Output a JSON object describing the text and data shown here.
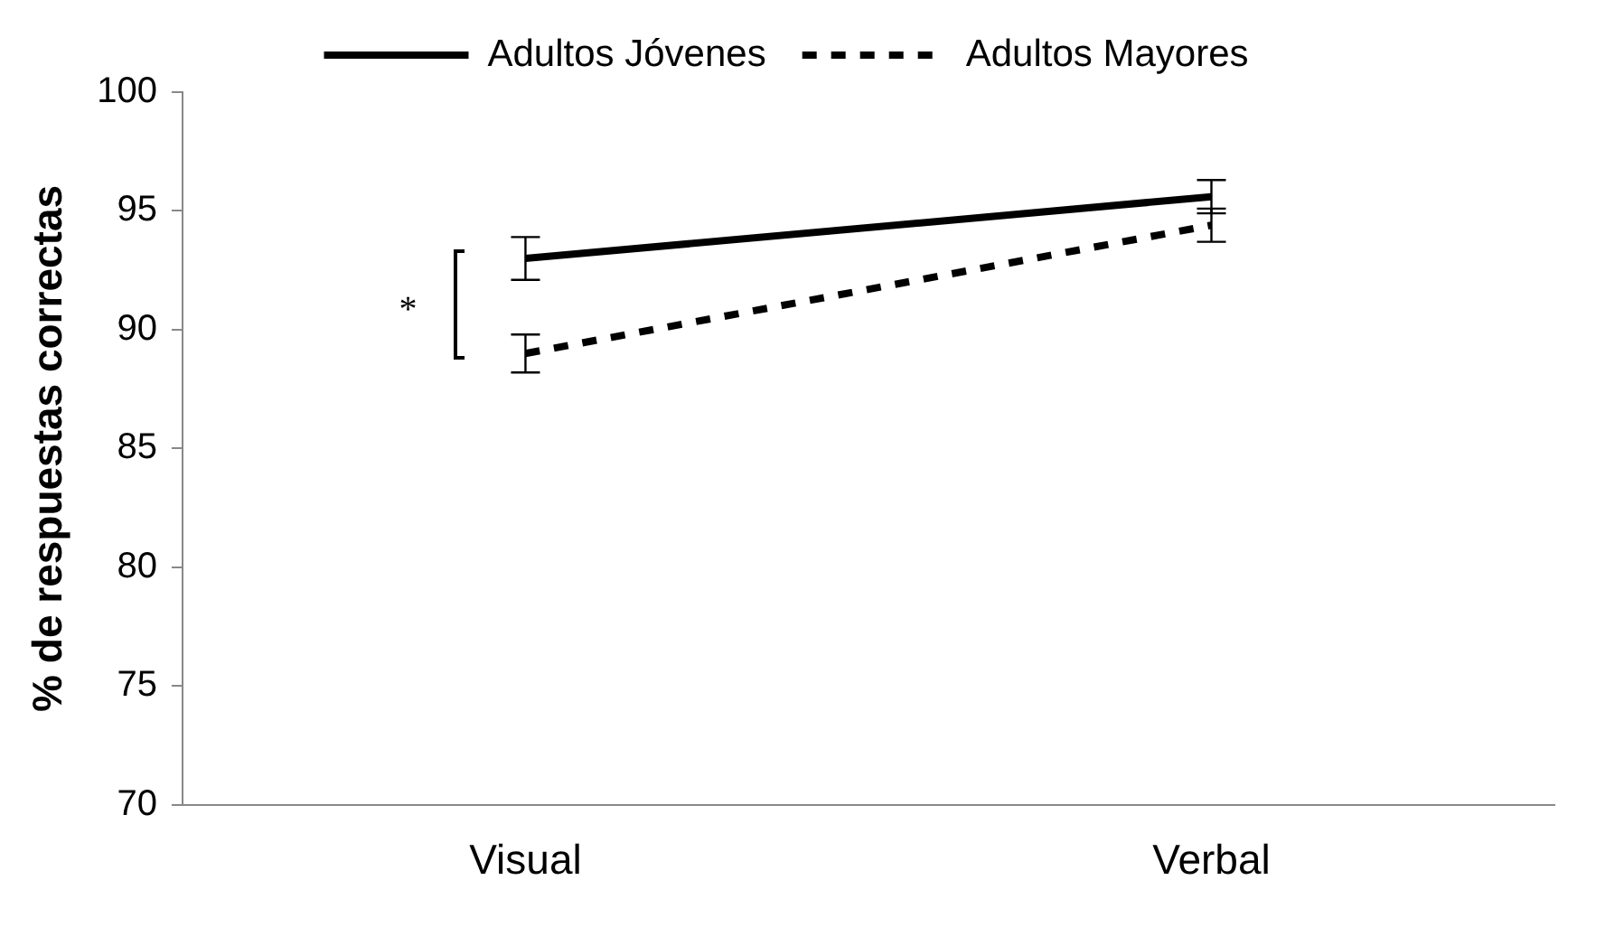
{
  "chart_data": {
    "type": "line",
    "ylabel": "% de respuestas correctas",
    "categories": [
      "Visual",
      "Verbal"
    ],
    "series": [
      {
        "name": "Adultos Jóvenes",
        "color": "#000000",
        "values": [
          93.0,
          95.6
        ],
        "errors": [
          0.9,
          0.7
        ],
        "line_style": "solid"
      },
      {
        "name": "Adultos Mayores",
        "color": "#000000",
        "values": [
          89.0,
          94.4
        ],
        "errors": [
          0.8,
          0.7
        ],
        "line_style": "dashed"
      }
    ],
    "ylim": [
      70,
      100
    ],
    "yticks": [
      70,
      75,
      80,
      85,
      90,
      95,
      100
    ],
    "grid": false,
    "legend": "top",
    "annotations": [
      "*"
    ]
  }
}
